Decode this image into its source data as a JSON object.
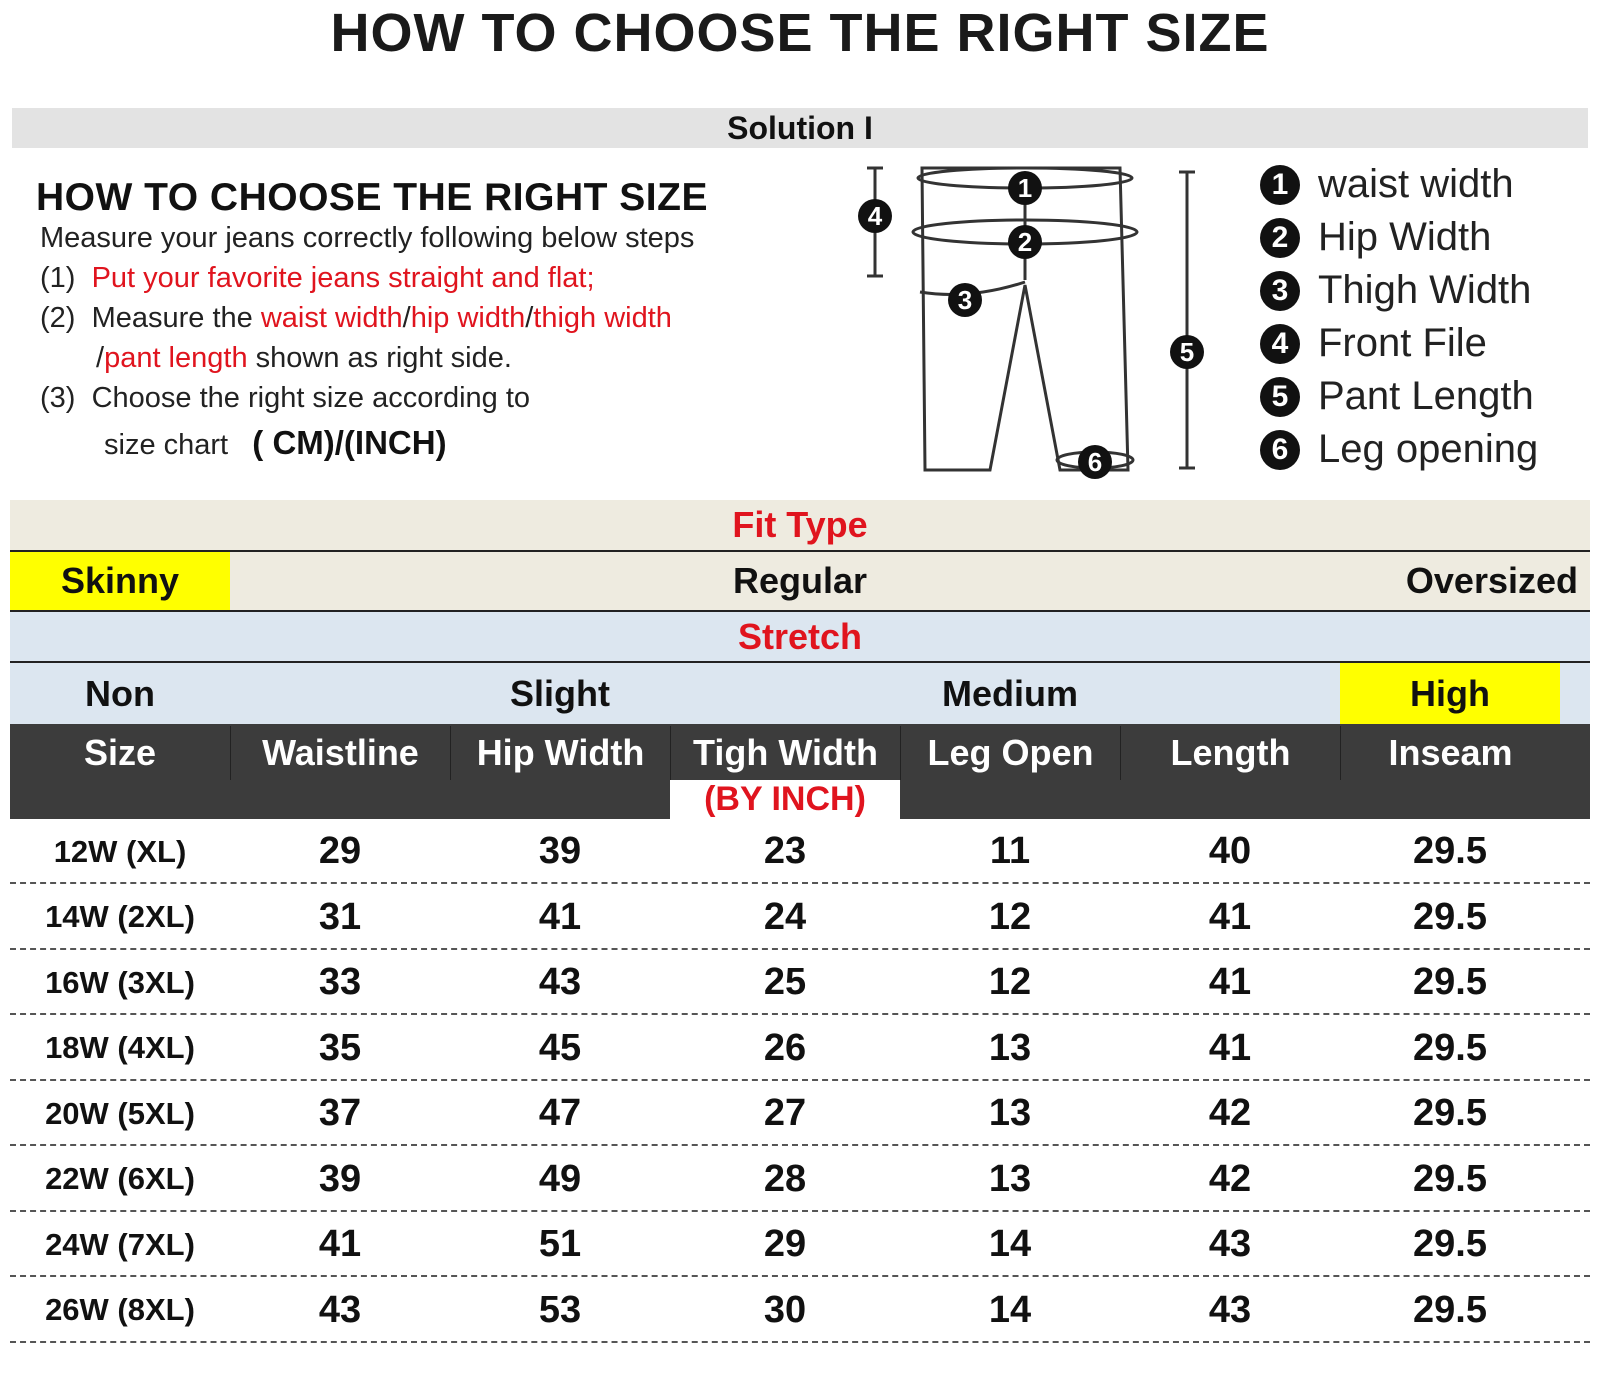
{
  "title": "HOW TO CHOOSE THE RIGHT SIZE",
  "solution": "Solution I",
  "instructions": {
    "heading": "HOW TO CHOOSE THE RIGHT SIZE",
    "intro": "Measure your jeans correctly following below steps",
    "step1_num": "(1)",
    "step1": "Put your favorite jeans straight and flat;",
    "step2_num": "(2)",
    "step2_a": "Measure the ",
    "step2_b": "waist width",
    "step2_c": "/",
    "step2_d": "hip width",
    "step2_e": "/",
    "step2_f": "thigh width",
    "step2_g": "/",
    "step2_h": "pant length",
    "step2_i": " shown as right side.",
    "step3_num": "(3)",
    "step3_a": "Choose the right size according to",
    "step3_b": "size chart",
    "step3_c": "( CM)/(INCH)"
  },
  "diagram_labels": [
    "1",
    "2",
    "3",
    "4",
    "5",
    "6"
  ],
  "legend": [
    {
      "num": "1",
      "label": "waist width"
    },
    {
      "num": "2",
      "label": "Hip Width"
    },
    {
      "num": "3",
      "label": "Thigh Width"
    },
    {
      "num": "4",
      "label": "Front File"
    },
    {
      "num": "5",
      "label": "Pant Length"
    },
    {
      "num": "6",
      "label": "Leg opening"
    }
  ],
  "fit": {
    "title": "Fit Type",
    "options": [
      "Skinny",
      "Regular",
      "Oversized"
    ],
    "highlighted": "Skinny"
  },
  "stretch": {
    "title": "Stretch",
    "options": [
      "Non",
      "Slight",
      "Medium",
      "High"
    ],
    "highlighted": "High"
  },
  "colors": {
    "highlight": "#ffff00",
    "red": "#e0141e",
    "header_bg": "#3c3c3c",
    "fit_bg": "#eeebe0",
    "stretch_bg": "#dce6f0"
  },
  "table": {
    "unit": "(BY INCH)",
    "columns": [
      "Size",
      "Waistline",
      "Hip Width",
      "Tigh Width",
      "Leg Open",
      "Length",
      "Inseam"
    ],
    "rows": [
      [
        "12W (XL)",
        "29",
        "39",
        "23",
        "11",
        "40",
        "29.5"
      ],
      [
        "14W (2XL)",
        "31",
        "41",
        "24",
        "12",
        "41",
        "29.5"
      ],
      [
        "16W (3XL)",
        "33",
        "43",
        "25",
        "12",
        "41",
        "29.5"
      ],
      [
        "18W (4XL)",
        "35",
        "45",
        "26",
        "13",
        "41",
        "29.5"
      ],
      [
        "20W (5XL)",
        "37",
        "47",
        "27",
        "13",
        "42",
        "29.5"
      ],
      [
        "22W (6XL)",
        "39",
        "49",
        "28",
        "13",
        "42",
        "29.5"
      ],
      [
        "24W (7XL)",
        "41",
        "51",
        "29",
        "14",
        "43",
        "29.5"
      ],
      [
        "26W (8XL)",
        "43",
        "53",
        "30",
        "14",
        "43",
        "29.5"
      ]
    ]
  }
}
